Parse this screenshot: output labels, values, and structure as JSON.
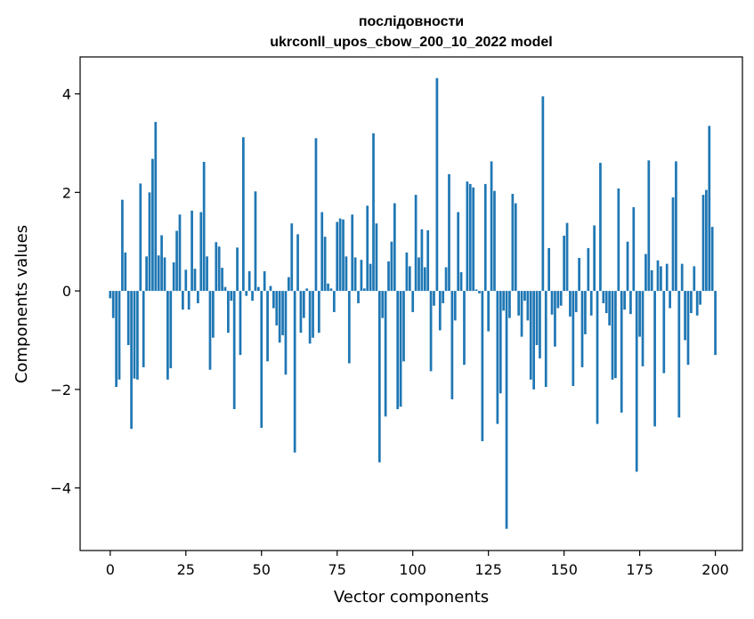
{
  "chart_data": {
    "type": "bar",
    "title_line1": "послідовности",
    "title_line2": "ukrconll_upos_cbow_200_10_2022 model",
    "xlabel": "Vector components",
    "ylabel": "Components values",
    "xlim": [
      -9.95,
      208.95
    ],
    "ylim": [
      -5.27,
      4.75
    ],
    "x_ticks": [
      0,
      25,
      50,
      75,
      100,
      125,
      150,
      175,
      200
    ],
    "y_ticks": [
      -4,
      -2,
      0,
      2,
      4
    ],
    "x_tick_labels": [
      "0",
      "25",
      "50",
      "75",
      "100",
      "125",
      "150",
      "175",
      "200"
    ],
    "y_tick_labels": [
      "−4",
      "−2",
      "0",
      "2",
      "4"
    ],
    "bar_color": "#1f77b4",
    "values": [
      -0.15,
      -0.55,
      -1.95,
      -1.8,
      1.85,
      0.78,
      -1.1,
      -2.8,
      -1.78,
      -1.8,
      2.18,
      -1.55,
      0.7,
      2.0,
      2.68,
      3.43,
      0.72,
      1.13,
      0.68,
      -1.8,
      -1.57,
      0.58,
      1.22,
      1.55,
      -0.38,
      0.43,
      -0.38,
      1.63,
      0.45,
      -0.25,
      1.6,
      2.62,
      0.7,
      -1.6,
      -0.95,
      0.99,
      0.9,
      0.47,
      0.08,
      -0.85,
      -0.2,
      -2.4,
      0.88,
      -1.3,
      3.12,
      -0.1,
      0.4,
      -0.2,
      2.02,
      0.08,
      -2.78,
      0.4,
      -1.43,
      0.1,
      -0.35,
      -0.7,
      -1.05,
      -0.9,
      -1.7,
      0.28,
      1.37,
      -3.28,
      1.15,
      -0.85,
      -0.55,
      0.05,
      -1.07,
      -0.95,
      3.1,
      -0.85,
      1.6,
      1.1,
      0.15,
      0.05,
      -0.43,
      1.4,
      1.47,
      1.45,
      0.7,
      -1.47,
      1.55,
      0.68,
      -0.25,
      0.63,
      0.05,
      1.73,
      0.55,
      3.2,
      1.37,
      -3.48,
      -0.55,
      -2.55,
      0.6,
      1.0,
      1.78,
      -2.4,
      -2.35,
      -1.43,
      0.78,
      0.5,
      -0.43,
      1.95,
      0.68,
      1.25,
      0.48,
      1.23,
      -1.63,
      -0.3,
      4.32,
      -0.8,
      -0.25,
      0.48,
      2.37,
      -2.2,
      -0.6,
      1.6,
      0.38,
      -1.5,
      2.22,
      2.17,
      2.1,
      0.03,
      -0.05,
      -3.05,
      2.17,
      -0.82,
      2.63,
      2.03,
      -2.7,
      -2.08,
      -0.4,
      -4.83,
      -0.55,
      1.97,
      1.78,
      -0.5,
      -0.93,
      -0.2,
      -0.6,
      -1.8,
      -2.0,
      -1.1,
      -1.37,
      3.95,
      -1.95,
      0.87,
      -0.48,
      -1.13,
      -0.35,
      -0.3,
      1.12,
      1.38,
      -0.52,
      -1.93,
      -0.43,
      0.67,
      -1.55,
      -0.88,
      0.87,
      -0.5,
      1.33,
      -2.7,
      2.6,
      -0.25,
      -0.45,
      -0.7,
      -1.8,
      -1.77,
      2.08,
      -2.47,
      -0.38,
      1.0,
      -0.47,
      1.7,
      -3.67,
      -0.93,
      -1.53,
      0.75,
      2.65,
      0.42,
      -2.75,
      0.62,
      0.5,
      -1.67,
      0.55,
      -0.35,
      1.9,
      2.63,
      -2.57,
      0.55,
      -1.0,
      -1.5,
      -0.45,
      0.5,
      -0.5,
      -0.28,
      1.95,
      2.05,
      3.35,
      1.3,
      -1.3
    ]
  }
}
